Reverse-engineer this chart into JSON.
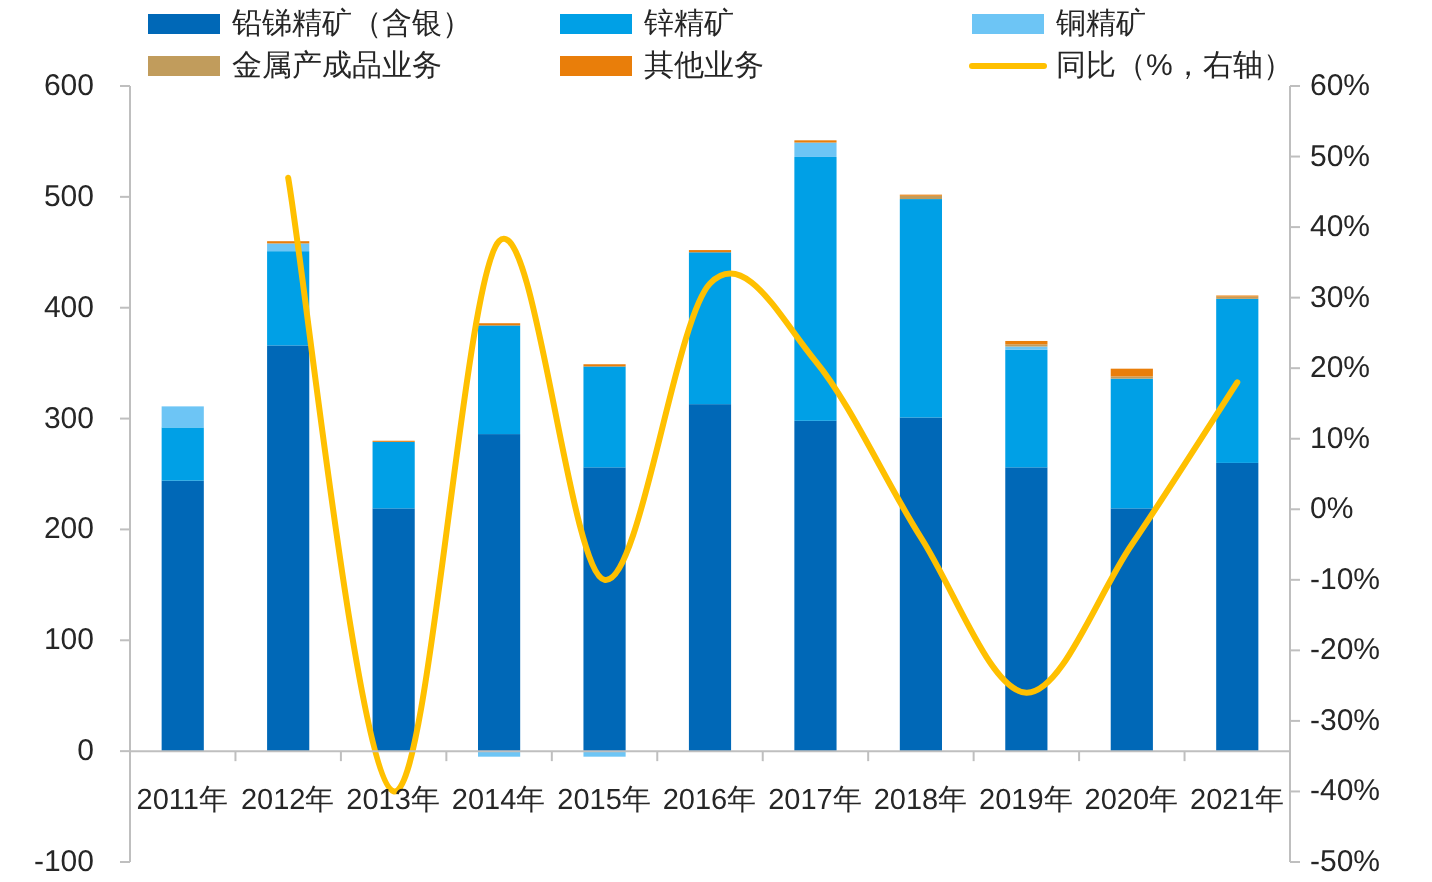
{
  "chart_data": {
    "type": "bar",
    "stacked": true,
    "categories": [
      "2011年",
      "2012年",
      "2013年",
      "2014年",
      "2015年",
      "2016年",
      "2017年",
      "2018年",
      "2019年",
      "2020年",
      "2021年"
    ],
    "series": [
      {
        "name": "铅锑精矿（含银）",
        "color": "#0068b7",
        "values": [
          244,
          366,
          219,
          286,
          256,
          313,
          298,
          301,
          256,
          219,
          260
        ]
      },
      {
        "name": "锌精矿",
        "color": "#00a0e6",
        "values": [
          48,
          85,
          60,
          98,
          91,
          137,
          238,
          197,
          106,
          117,
          148
        ]
      },
      {
        "name": "铜精矿",
        "color": "#6dc5f5",
        "values": [
          19,
          7,
          null,
          -5,
          -5,
          null,
          13,
          null,
          3,
          null,
          null
        ]
      },
      {
        "name": "金属产成品业务",
        "color": "#c19c5c",
        "values": [
          null,
          null,
          null,
          null,
          null,
          null,
          null,
          3,
          2,
          2,
          2
        ]
      },
      {
        "name": "其他业务",
        "color": "#e97e0a",
        "values": [
          null,
          2,
          1,
          2,
          2,
          2,
          2,
          1,
          3,
          7,
          1
        ]
      },
      {
        "name": "同比（%，右轴）",
        "type": "line",
        "axis": "y2",
        "color": "#ffc000",
        "values": [
          null,
          47,
          -40,
          38,
          -10,
          32,
          21,
          -4,
          -26,
          -5,
          18
        ]
      }
    ],
    "ylim": [
      -100,
      600
    ],
    "yticks": [
      -100,
      0,
      100,
      200,
      300,
      400,
      500,
      600
    ],
    "y2lim": [
      -50,
      60
    ],
    "y2ticks": [
      {
        "value": -50,
        "label": "-50%"
      },
      {
        "value": -40,
        "label": "-40%"
      },
      {
        "value": -30,
        "label": "-30%"
      },
      {
        "value": -20,
        "label": "-20%"
      },
      {
        "value": -10,
        "label": "-10%"
      },
      {
        "value": 0,
        "label": "0%"
      },
      {
        "value": 10,
        "label": "10%"
      },
      {
        "value": 20,
        "label": "20%"
      },
      {
        "value": 30,
        "label": "30%"
      },
      {
        "value": 40,
        "label": "40%"
      },
      {
        "value": 50,
        "label": "50%"
      },
      {
        "value": 60,
        "label": "60%"
      }
    ],
    "legend": "top"
  }
}
